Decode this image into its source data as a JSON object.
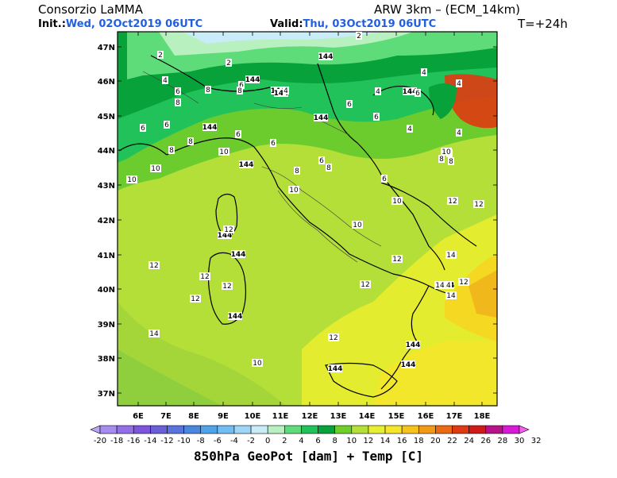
{
  "header": {
    "org": "Consorzio LaMMA",
    "model": "ARW 3km – (ECM_14km)",
    "init_label": "Init.:",
    "init_value": "Wed, 02Oct2019 06UTC",
    "valid_label": "Valid:",
    "valid_value": "Thu, 03Oct2019 06UTC",
    "lead": "T=+24h"
  },
  "lat_labels": [
    "47N",
    "46N",
    "45N",
    "44N",
    "43N",
    "42N",
    "41N",
    "40N",
    "39N",
    "38N",
    "37N"
  ],
  "lon_labels": [
    "6E",
    "7E",
    "8E",
    "9E",
    "10E",
    "11E",
    "12E",
    "13E",
    "14E",
    "15E",
    "16E",
    "17E",
    "18E"
  ],
  "colorbar": {
    "labels": [
      "-20",
      "-18",
      "-16",
      "-14",
      "-12",
      "-10",
      "-8",
      "-6",
      "-4",
      "-2",
      "0",
      "2",
      "4",
      "6",
      "8",
      "10",
      "12",
      "14",
      "16",
      "18",
      "20",
      "22",
      "24",
      "26",
      "28",
      "30",
      "32"
    ],
    "colors": [
      "#b9a6f4",
      "#a68cf0",
      "#9370e8",
      "#7f55df",
      "#6a5fd9",
      "#5a72dc",
      "#4a88e0",
      "#4ea3ea",
      "#72bdf2",
      "#9fd6f7",
      "#c8ecf8",
      "#b8f0c0",
      "#5edc7a",
      "#22c25a",
      "#08a23a",
      "#6fcf2a",
      "#b5e03a",
      "#e6ef30",
      "#f6e52a",
      "#f6c21c",
      "#f29a16",
      "#ec6a12",
      "#e03a12",
      "#cf1a1a",
      "#b8128a",
      "#d81ad8",
      "#f45cf4"
    ],
    "title": "850hPa GeoPot [dam] + Temp [C]"
  },
  "annotations": [
    {
      "t": "144"
    },
    {
      "t": "144"
    },
    {
      "t": "144"
    },
    {
      "t": "144"
    },
    {
      "t": "144"
    },
    {
      "t": "144"
    },
    {
      "t": "144"
    },
    {
      "t": "144"
    },
    {
      "t": "144"
    },
    {
      "t": "144"
    },
    {
      "t": "144"
    },
    {
      "t": "144"
    },
    {
      "t": "144"
    },
    {
      "t": "144"
    },
    {
      "t": "144"
    },
    {
      "t": "2"
    },
    {
      "t": "2"
    },
    {
      "t": "2"
    },
    {
      "t": "4"
    },
    {
      "t": "4"
    },
    {
      "t": "4"
    },
    {
      "t": "4"
    },
    {
      "t": "4"
    },
    {
      "t": "4"
    },
    {
      "t": "4"
    },
    {
      "t": "4"
    },
    {
      "t": "6"
    },
    {
      "t": "6"
    },
    {
      "t": "6"
    },
    {
      "t": "6"
    },
    {
      "t": "6"
    },
    {
      "t": "6"
    },
    {
      "t": "6"
    },
    {
      "t": "6"
    },
    {
      "t": "6"
    },
    {
      "t": "6"
    },
    {
      "t": "6"
    },
    {
      "t": "8"
    },
    {
      "t": "8"
    },
    {
      "t": "8"
    },
    {
      "t": "8"
    },
    {
      "t": "8"
    },
    {
      "t": "8"
    },
    {
      "t": "8"
    },
    {
      "t": "8"
    },
    {
      "t": "8"
    },
    {
      "t": "10"
    },
    {
      "t": "10"
    },
    {
      "t": "10"
    },
    {
      "t": "10"
    },
    {
      "t": "10"
    },
    {
      "t": "10"
    },
    {
      "t": "10"
    },
    {
      "t": "10"
    },
    {
      "t": "12"
    },
    {
      "t": "12"
    },
    {
      "t": "12"
    },
    {
      "t": "12"
    },
    {
      "t": "12"
    },
    {
      "t": "12"
    },
    {
      "t": "12"
    },
    {
      "t": "12"
    },
    {
      "t": "12"
    },
    {
      "t": "12"
    },
    {
      "t": "12"
    },
    {
      "t": "14"
    },
    {
      "t": "14"
    },
    {
      "t": "14"
    },
    {
      "t": "14"
    },
    {
      "t": "14"
    }
  ]
}
